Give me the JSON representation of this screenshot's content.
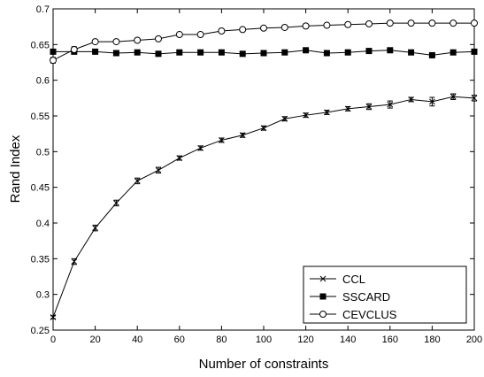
{
  "chart_data": {
    "type": "line",
    "xlabel": "Number of constraints",
    "ylabel": "Rand Index",
    "xlim": [
      0,
      200
    ],
    "ylim": [
      0.25,
      0.7
    ],
    "xticks": [
      0,
      20,
      40,
      60,
      80,
      100,
      120,
      140,
      160,
      180,
      200
    ],
    "yticks": [
      0.25,
      0.3,
      0.35,
      0.4,
      0.45,
      0.5,
      0.55,
      0.6,
      0.65,
      0.7
    ],
    "x": [
      0,
      10,
      20,
      30,
      40,
      50,
      60,
      70,
      80,
      90,
      100,
      110,
      120,
      130,
      140,
      150,
      160,
      170,
      180,
      190,
      200
    ],
    "grid": false,
    "legend_position": "bottom-right",
    "series": [
      {
        "name": "CCL",
        "marker": "x",
        "values": [
          0.268,
          0.346,
          0.393,
          0.428,
          0.459,
          0.474,
          0.491,
          0.505,
          0.516,
          0.523,
          0.533,
          0.546,
          0.551,
          0.555,
          0.56,
          0.563,
          0.566,
          0.573,
          0.57,
          0.577,
          0.575
        ],
        "errors": [
          0.002,
          0.004,
          0.004,
          0.004,
          0.004,
          0.004,
          0.003,
          0.003,
          0.003,
          0.003,
          0.003,
          0.003,
          0.003,
          0.003,
          0.003,
          0.004,
          0.005,
          0.003,
          0.006,
          0.004,
          0.004
        ]
      },
      {
        "name": "SSCARD",
        "marker": "square-filled",
        "values": [
          0.64,
          0.64,
          0.64,
          0.638,
          0.639,
          0.637,
          0.639,
          0.639,
          0.639,
          0.637,
          0.638,
          0.639,
          0.642,
          0.638,
          0.639,
          0.641,
          0.642,
          0.639,
          0.635,
          0.639,
          0.64
        ],
        "errors": [
          0.003,
          0.003,
          0.003,
          0.003,
          0.003,
          0.003,
          0.003,
          0.003,
          0.003,
          0.003,
          0.003,
          0.003,
          0.003,
          0.003,
          0.003,
          0.003,
          0.003,
          0.003,
          0.003,
          0.003,
          0.003
        ]
      },
      {
        "name": "CEVCLUS",
        "marker": "circle-open",
        "values": [
          0.628,
          0.643,
          0.654,
          0.654,
          0.656,
          0.658,
          0.664,
          0.664,
          0.669,
          0.671,
          0.673,
          0.674,
          0.676,
          0.677,
          0.678,
          0.679,
          0.68,
          0.68,
          0.68,
          0.68,
          0.68
        ],
        "errors": [
          0.004,
          0.004,
          0.002,
          0.002,
          0.002,
          0.002,
          0.002,
          0.002,
          0.002,
          0.002,
          0.002,
          0.002,
          0.002,
          0.002,
          0.002,
          0.002,
          0.002,
          0.002,
          0.002,
          0.002,
          0.002
        ]
      }
    ]
  }
}
